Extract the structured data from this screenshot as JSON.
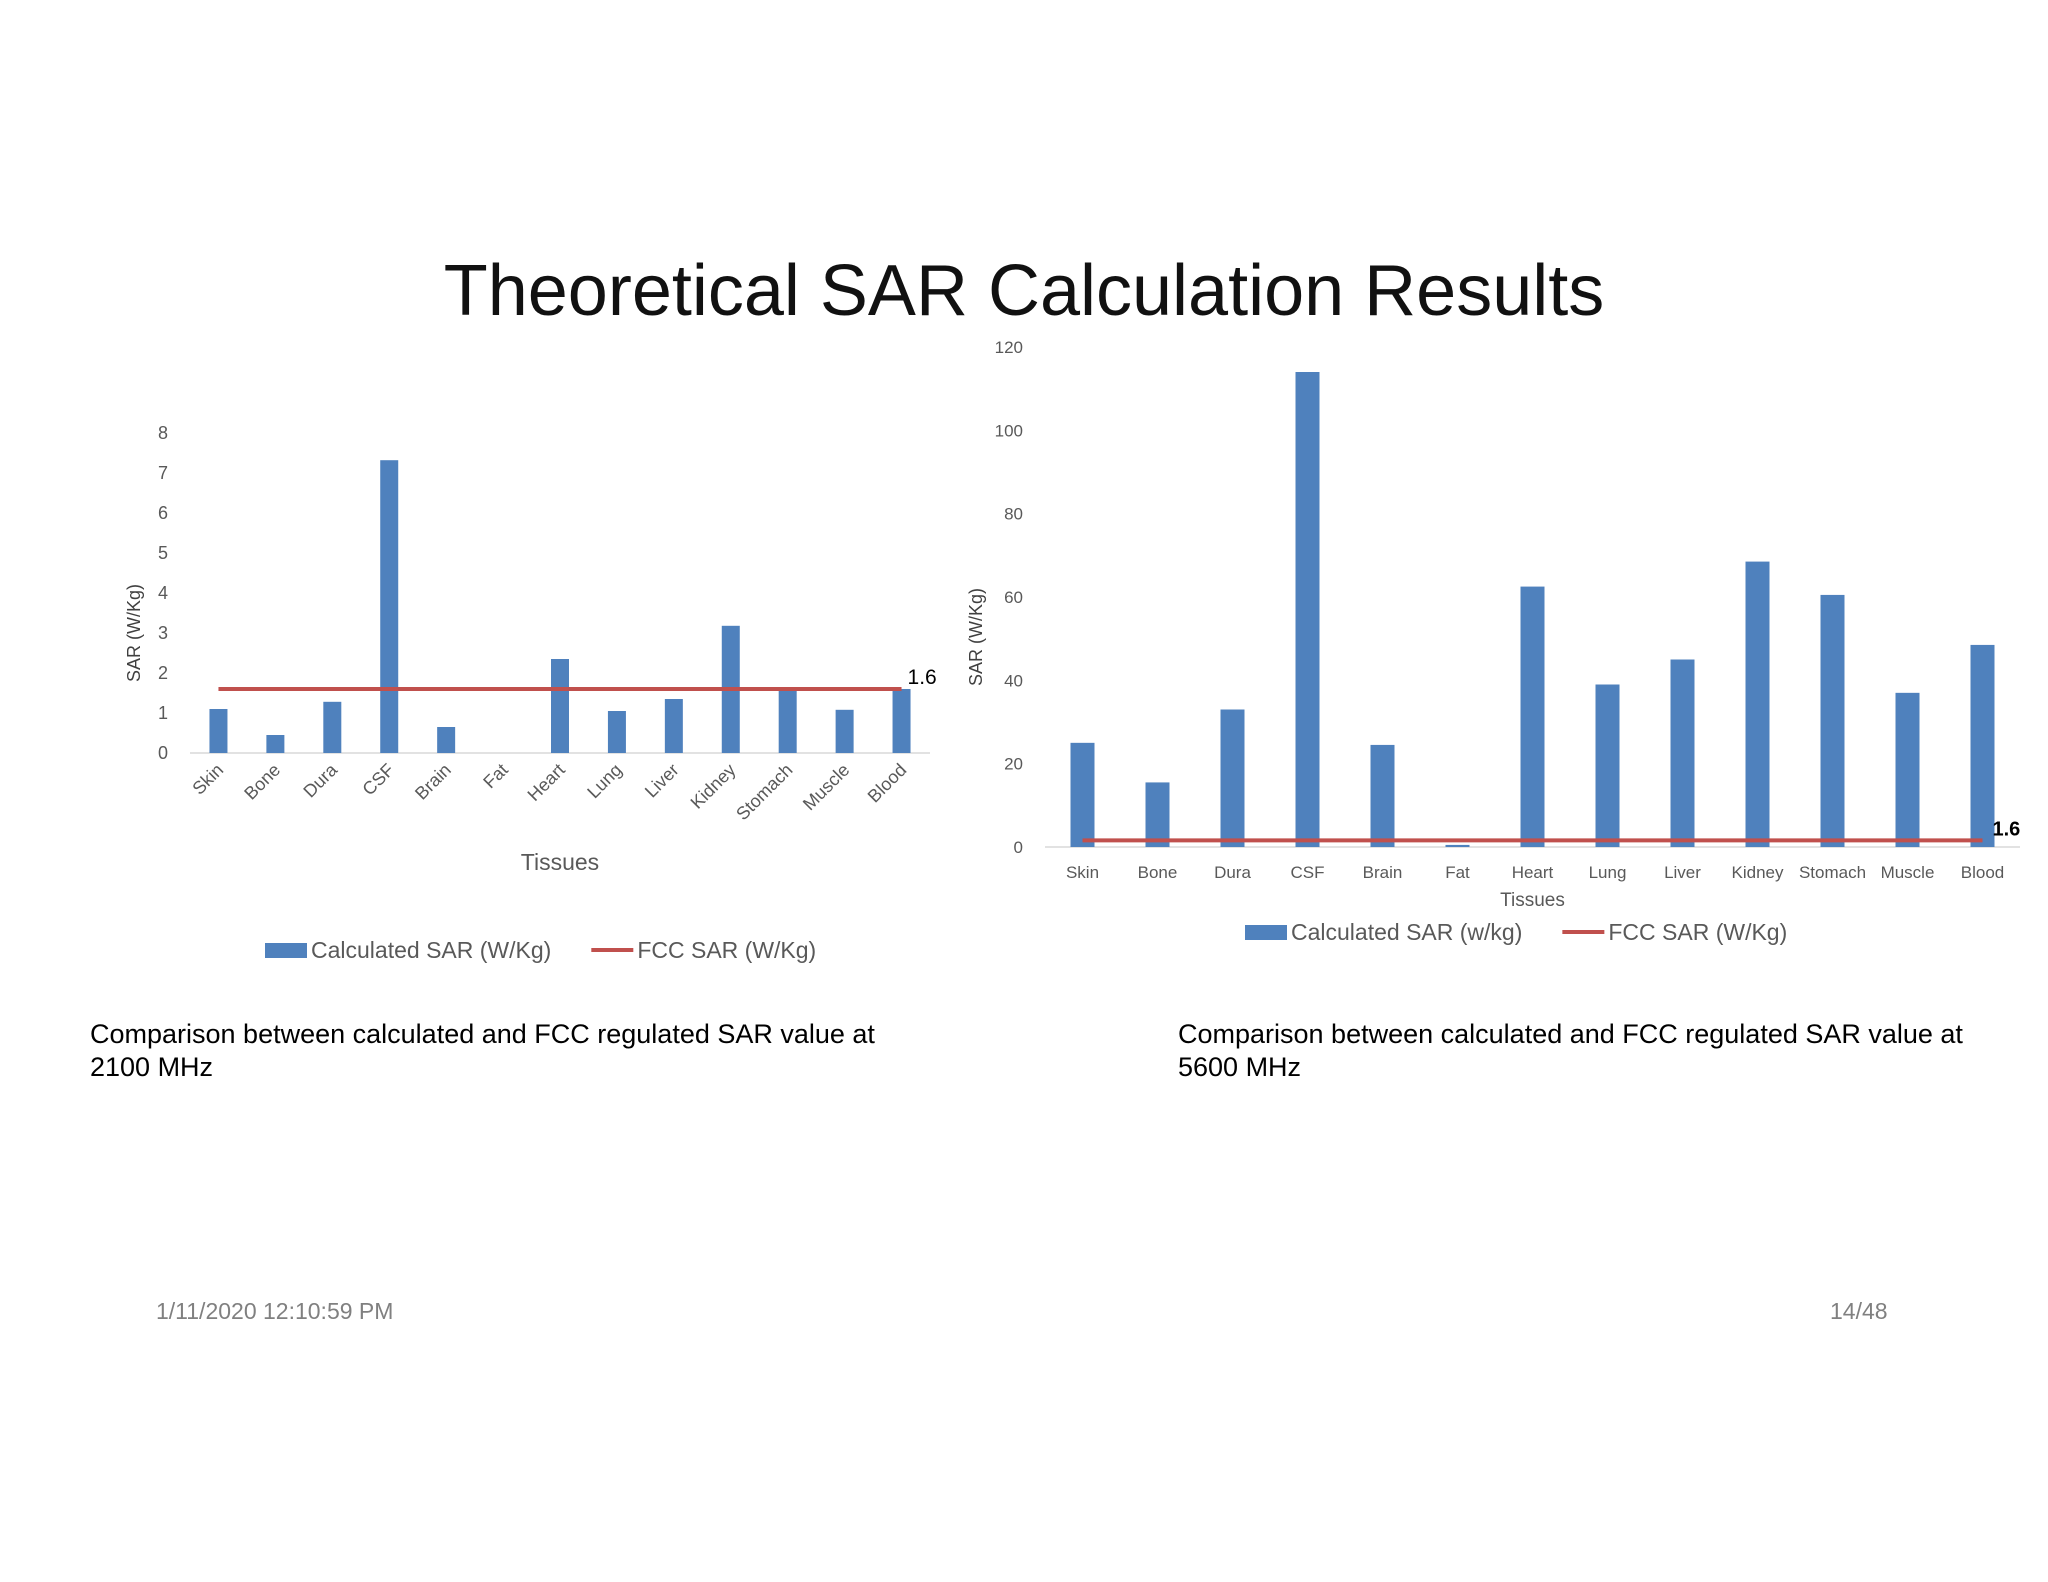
{
  "title": "Theoretical SAR Calculation Results",
  "charts": [
    {
      "caption": "Comparison between calculated and FCC regulated SAR value at 2100 MHz",
      "colors": {
        "bar": "#4f81bd",
        "line": "#c0504d"
      }
    },
    {
      "caption": "Comparison between calculated and FCC regulated SAR value at 5600 MHz",
      "colors": {
        "bar": "#4f81bd",
        "line": "#c0504d"
      }
    }
  ],
  "chart_data": [
    {
      "type": "bar",
      "categories": [
        "Skin",
        "Bone",
        "Dura",
        "CSF",
        "Brain",
        "Fat",
        "Heart",
        "Lung",
        "Liver",
        "Kidney",
        "Stomach",
        "Muscle",
        "Blood"
      ],
      "series": [
        {
          "name": "Calculated SAR (W/Kg)",
          "type": "bar",
          "values": [
            1.1,
            0.45,
            1.28,
            7.32,
            0.65,
            0.0,
            2.35,
            1.05,
            1.35,
            3.18,
            1.6,
            1.08,
            1.6
          ]
        },
        {
          "name": "FCC SAR (W/Kg)",
          "type": "line",
          "values": [
            1.6,
            1.6,
            1.6,
            1.6,
            1.6,
            1.6,
            1.6,
            1.6,
            1.6,
            1.6,
            1.6,
            1.6,
            1.6
          ]
        }
      ],
      "line_label": "1.6",
      "xlabel": "Tissues",
      "ylabel": "SAR (W/Kg)",
      "ylim": [
        0,
        8
      ],
      "yticks": [
        0,
        1,
        2,
        3,
        4,
        5,
        6,
        7,
        8
      ],
      "xtick_rotation": "rotated",
      "legend": "bottom",
      "grid": false
    },
    {
      "type": "bar",
      "categories": [
        "Skin",
        "Bone",
        "Dura",
        "CSF",
        "Brain",
        "Fat",
        "Heart",
        "Lung",
        "Liver",
        "Kidney",
        "Stomach",
        "Muscle",
        "Blood"
      ],
      "series": [
        {
          "name": "Calculated SAR (w/kg)",
          "type": "bar",
          "values": [
            25,
            15.5,
            33,
            114,
            24.5,
            0.5,
            62.5,
            39,
            45,
            68.5,
            60.5,
            37,
            48.5
          ]
        },
        {
          "name": "FCC SAR (W/Kg)",
          "type": "line",
          "values": [
            1.6,
            1.6,
            1.6,
            1.6,
            1.6,
            1.6,
            1.6,
            1.6,
            1.6,
            1.6,
            1.6,
            1.6,
            1.6
          ]
        }
      ],
      "line_label": "1.6",
      "xlabel": "Tissues",
      "ylabel": "SAR (W/Kg)",
      "ylim": [
        0,
        120
      ],
      "yticks": [
        0,
        20,
        40,
        60,
        80,
        100,
        120
      ],
      "xtick_rotation": "none",
      "legend": "bottom",
      "grid": false
    }
  ],
  "footer": {
    "date": "1/11/2020 12:10:59 PM",
    "page": "14/48"
  }
}
